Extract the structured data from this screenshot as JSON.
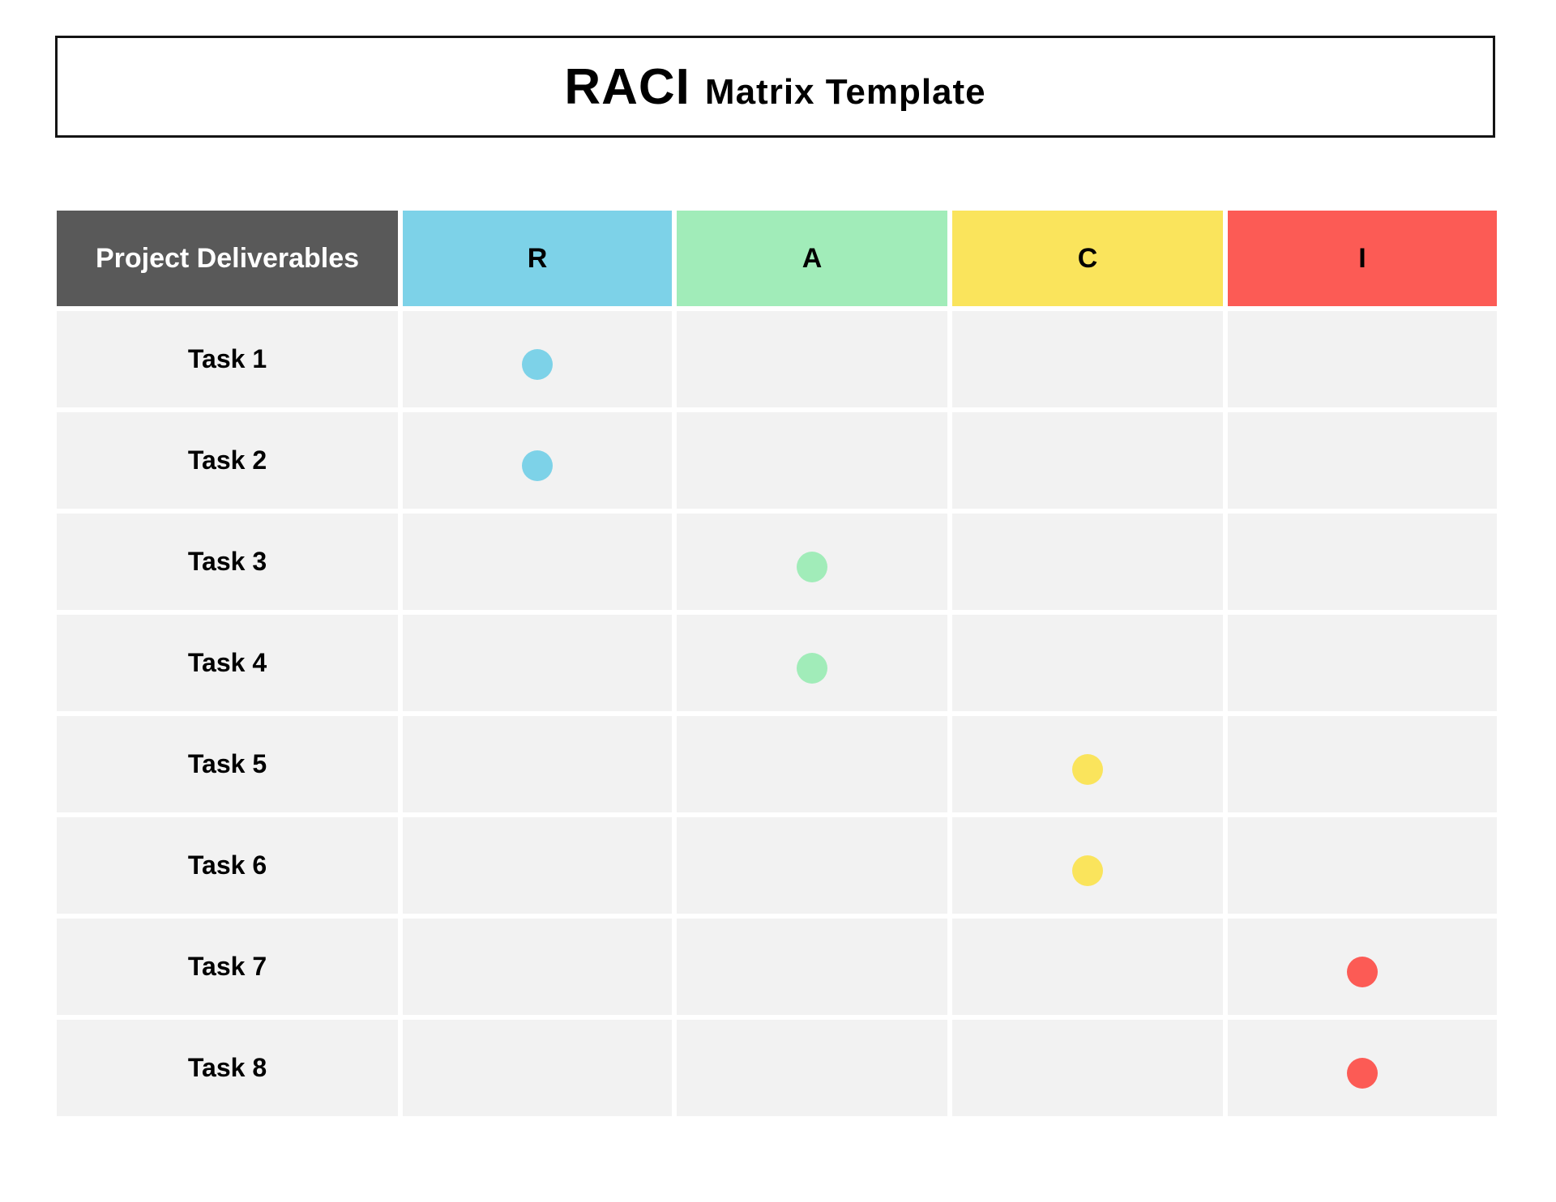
{
  "title": {
    "primary": "RACI",
    "secondary": "Matrix Template"
  },
  "colors": {
    "page_bg": "#FFFFFF",
    "title_border": "#141414",
    "deliverables_header_bg": "#595959",
    "deliverables_header_text": "#FFFFFF",
    "cell_bg": "#F2F2F2"
  },
  "matrix": {
    "deliverables_header": "Project Deliverables",
    "columns": [
      {
        "key": "R",
        "label": "R",
        "color": "#7DD2E8"
      },
      {
        "key": "A",
        "label": "A",
        "color": "#A1ECB9"
      },
      {
        "key": "C",
        "label": "C",
        "color": "#FAE45C"
      },
      {
        "key": "I",
        "label": "I",
        "color": "#FC5B55"
      }
    ],
    "rows": [
      {
        "label": "Task 1",
        "marks": [
          "R"
        ]
      },
      {
        "label": "Task 2",
        "marks": [
          "R"
        ]
      },
      {
        "label": "Task 3",
        "marks": [
          "A"
        ]
      },
      {
        "label": "Task 4",
        "marks": [
          "A"
        ]
      },
      {
        "label": "Task 5",
        "marks": [
          "C"
        ]
      },
      {
        "label": "Task 6",
        "marks": [
          "C"
        ]
      },
      {
        "label": "Task 7",
        "marks": [
          "I"
        ]
      },
      {
        "label": "Task 8",
        "marks": [
          "I"
        ]
      }
    ]
  }
}
